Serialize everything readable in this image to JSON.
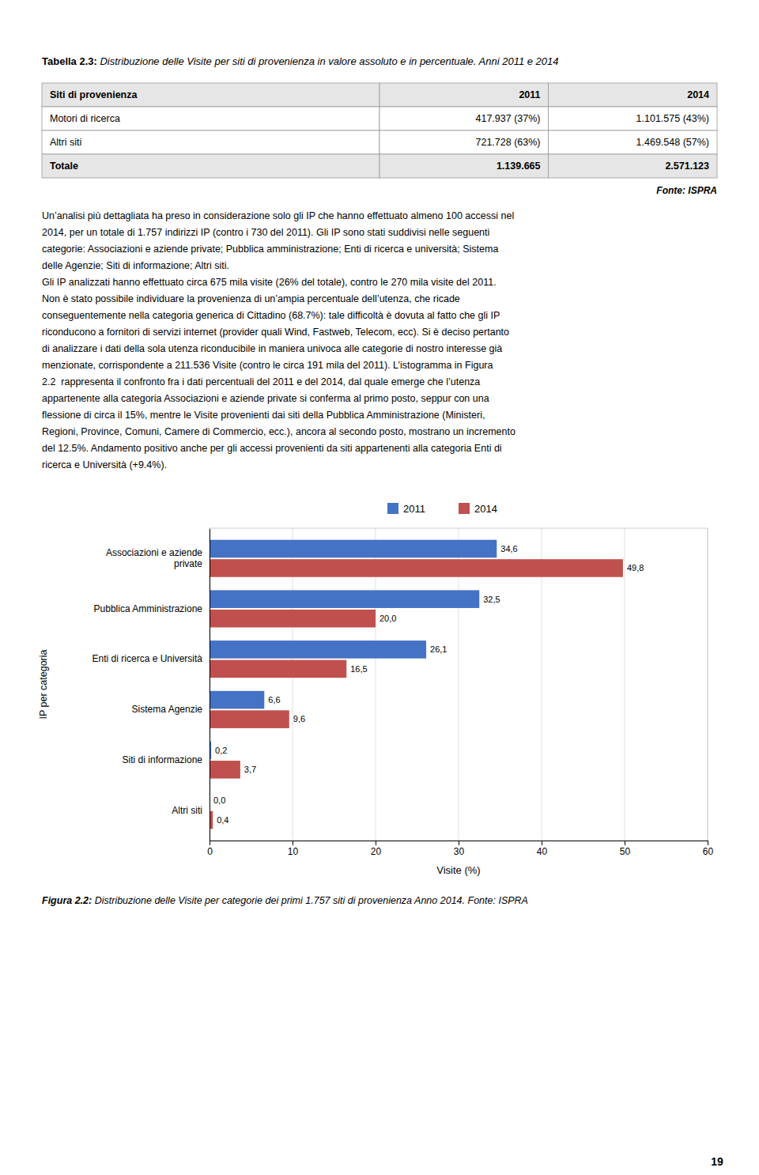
{
  "page_number": "19",
  "page_title": {
    "bold": "Tabella 2.3:",
    "italic": " Distribuzione delle Visite per siti di provenienza in valore assoluto e in percentuale. Anni 2011 e 2014"
  },
  "table": {
    "headers": [
      "Siti di provenienza",
      "2011",
      "2014"
    ],
    "rows": [
      [
        "Motori di ricerca",
        "417.937 (37%)",
        "1.101.575 (43%)"
      ],
      [
        "Altri siti",
        "721.728 (63%)",
        "1.469.548 (57%)"
      ],
      [
        "Totale",
        "1.139.665",
        "2.571.123"
      ]
    ]
  },
  "source": "Fonte: ISPRA",
  "body_text": [
    "Un’analisi più dettagliata ha preso in considerazione solo gli IP che hanno effettuato almeno 100 accessi nel",
    "2014, per un totale di 1.757 indirizzi IP (contro i 730 del 2011). Gli IP sono stati suddivisi nelle seguenti",
    "categorie: Associazioni e aziende private; Pubblica amministrazione; Enti di ricerca e università; Sistema",
    "delle Agenzie; Siti di informazione; Altri siti.",
    "Gli IP analizzati hanno effettuato circa 675 mila visite (26% del totale), contro le 270 mila visite del 2011.",
    "Non è stato possibile individuare la provenienza di un’ampia percentuale dell’utenza, che ricade",
    "conseguentemente nella categoria generica di Cittadino (68.7%): tale difficoltà è dovuta al fatto che gli IP",
    "riconducono a fornitori di servizi internet (provider quali Wind, Fastweb, Telecom, ecc). Si è deciso pertanto",
    "di analizzare i dati della sola utenza riconducibile in maniera univoca alle categorie di nostro interesse già",
    "menzionate, corrispondente a 211.536 Visite (contro le circa 191 mila del 2011). L’istogramma in Figura",
    "2.2  rappresenta il confronto fra i dati percentuali del 2011 e del 2014, dal quale emerge che l’utenza",
    "appartenente alla categoria Associazioni e aziende private si conferma al primo posto, seppur con una",
    "flessione di circa il 15%, mentre le Visite provenienti dai siti della Pubblica Amministrazione (Ministeri,",
    "Regioni, Province, Comuni, Camere di Commercio, ecc.), ancora al secondo posto, mostrano un incremento",
    "del 12.5%. Andamento positivo anche per gli accessi provenienti da siti appartenenti alla categoria Enti di",
    "ricerca e Università (+9.4%)."
  ],
  "chart_data": {
    "type": "bar",
    "orientation": "horizontal",
    "categories": [
      "Associazioni e aziende\nprivate",
      "Pubblica Amministrazione",
      "Enti di ricerca e Università",
      "Sistema Agenzie",
      "Siti di informazione",
      "Altri siti"
    ],
    "series": [
      {
        "name": "2011",
        "color": "#4472C4",
        "values": [
          34.6,
          32.5,
          26.1,
          6.6,
          0.2,
          0.0
        ],
        "value_labels": [
          "34,6",
          "32,5",
          "26,1",
          "6,6",
          "0,2",
          "0,0"
        ]
      },
      {
        "name": "2014",
        "color": "#C0504D",
        "values": [
          49.8,
          20.0,
          16.5,
          9.6,
          3.7,
          0.4
        ],
        "value_labels": [
          "49,8",
          "20,0",
          "16,5",
          "9,6",
          "3,7",
          "0,4"
        ]
      }
    ],
    "xlabel": "Visite (%)",
    "ylabel": "IP per categoria",
    "xlim": [
      0,
      60
    ],
    "xticks": [
      0,
      10,
      20,
      30,
      40,
      50,
      60
    ],
    "grid": true,
    "legend": "upper center",
    "data_labels": true
  },
  "caption": {
    "bold": "Figura 2.2:",
    "italic": " Distribuzione delle Visite per categorie dei primi 1.757 siti di provenienza Anno 2014. Fonte: ISPRA"
  }
}
